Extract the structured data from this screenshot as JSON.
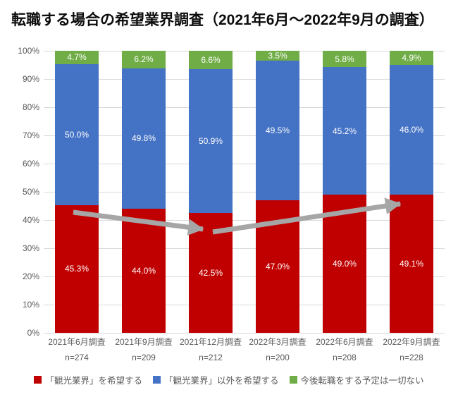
{
  "chart_data": {
    "type": "bar",
    "stacked": true,
    "title": "転職する場合の希望業界調査（2021年6月～2022年9月の調査）",
    "categories": [
      "2021年6月調査",
      "2021年9月調査",
      "2021年12月調査",
      "2022年3月調査",
      "2022年6月調査",
      "2022年9月調査"
    ],
    "sample_sizes": [
      "n=274",
      "n=209",
      "n=212",
      "n=200",
      "n=208",
      "n=228"
    ],
    "series": [
      {
        "name": "「観光業界」を希望する",
        "color": "#c00000",
        "values": [
          45.3,
          44.0,
          42.5,
          47.0,
          49.0,
          49.1
        ],
        "labels": [
          "45.3%",
          "44.0%",
          "42.5%",
          "47.0%",
          "49.0%",
          "49.1%"
        ]
      },
      {
        "name": "「観光業界」以外を希望する",
        "color": "#4472c4",
        "values": [
          50.0,
          49.8,
          50.9,
          49.5,
          45.2,
          46.0
        ],
        "labels": [
          "50.0%",
          "49.8%",
          "50.9%",
          "49.5%",
          "45.2%",
          "46.0%"
        ]
      },
      {
        "name": "今後転職をする予定は一切ない",
        "color": "#70ad47",
        "values": [
          4.7,
          6.2,
          6.6,
          3.5,
          5.8,
          4.9
        ],
        "labels": [
          "4.7%",
          "6.2%",
          "6.6%",
          "3.5%",
          "5.8%",
          "4.9%"
        ]
      }
    ],
    "y_ticks": [
      "0%",
      "10%",
      "20%",
      "30%",
      "40%",
      "50%",
      "60%",
      "70%",
      "80%",
      "90%",
      "100%"
    ],
    "ylim": [
      0,
      100
    ],
    "grid": true,
    "legend_position": "bottom",
    "label_color": "#ffffff",
    "axis_text_color": "#595959",
    "gridline_color": "#d9d9d9",
    "arrow_color": "#a6a6a6",
    "annotations": [
      {
        "type": "trend-arrow",
        "from": [
          104,
          301
        ],
        "to": [
          288,
          325
        ]
      },
      {
        "type": "trend-arrow",
        "from": [
          302,
          329
        ],
        "to": [
          568,
          289
        ]
      }
    ]
  }
}
